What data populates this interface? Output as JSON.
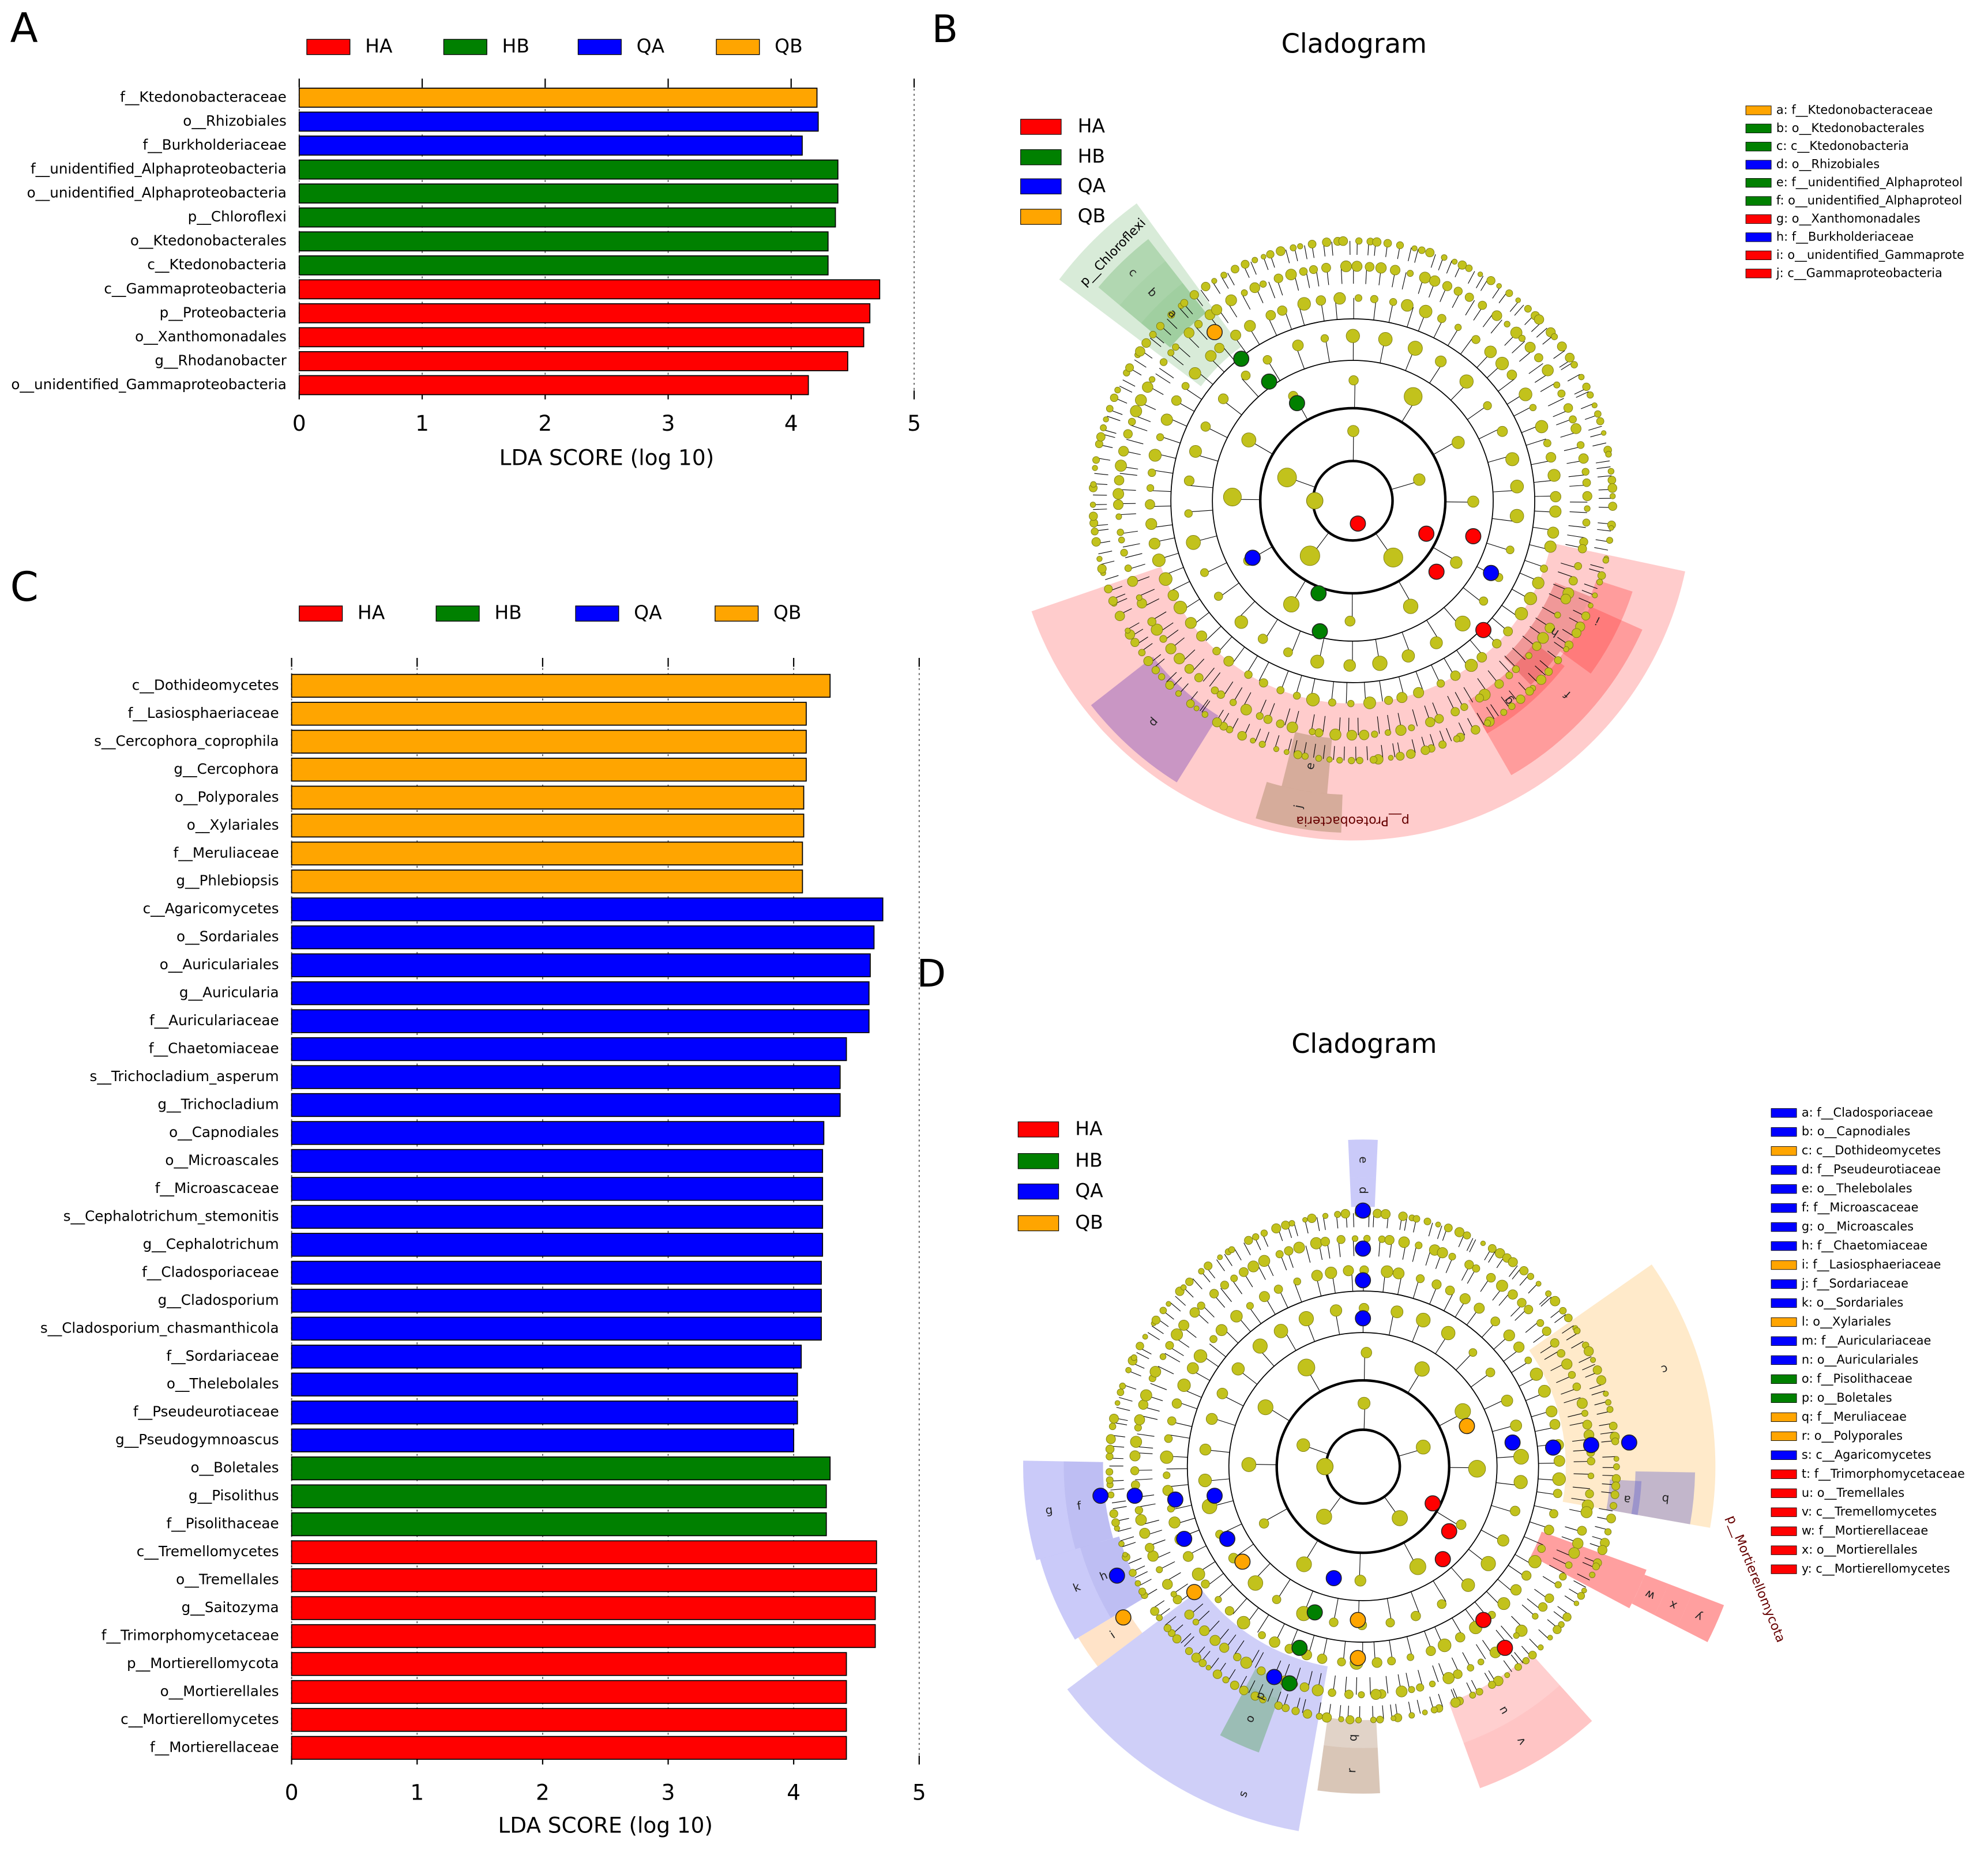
{
  "chart_data": [
    {
      "type": "barh",
      "panel": "A",
      "xlabel": "LDA SCORE (log 10)",
      "categories": [
        "f__Ktedonobacteraceae",
        "o__Rhizobiales",
        "f__Burkholderiaceae",
        "f__unidentified_Alphaproteobacteria",
        "o__unidentified_Alphaproteobacteria",
        "p__Chloroflexi",
        "o__Ktedonobacterales",
        "c__Ktedonobacteria",
        "c__Gammaproteobacteria",
        "p__Proteobacteria",
        "o__Xanthomonadales",
        "g__Rhodanobacter",
        "o__unidentified_Gammaproteobacteria"
      ],
      "series": [
        {
          "name": "HA",
          "color": "#ff0000",
          "values": [
            null,
            null,
            null,
            null,
            null,
            null,
            null,
            null,
            4.72,
            4.64,
            4.59,
            4.46,
            4.14
          ]
        },
        {
          "name": "HB",
          "color": "#008000",
          "values": [
            null,
            null,
            null,
            4.38,
            4.38,
            4.36,
            4.3,
            4.3,
            null,
            null,
            null,
            null,
            null
          ]
        },
        {
          "name": "QA",
          "color": "#0000ff",
          "values": [
            null,
            4.22,
            4.09,
            null,
            null,
            null,
            null,
            null,
            null,
            null,
            null,
            null,
            null
          ]
        },
        {
          "name": "QB",
          "color": "#ffa500",
          "values": [
            4.21,
            null,
            null,
            null,
            null,
            null,
            null,
            null,
            null,
            null,
            null,
            null,
            null
          ]
        }
      ],
      "xlim": [
        0,
        5
      ],
      "xticks": [
        0,
        1,
        2,
        3,
        4,
        5
      ],
      "grid": true
    },
    {
      "type": "barh",
      "panel": "C",
      "xlabel": "LDA SCORE (log 10)",
      "categories": [
        "c__Dothideomycetes",
        "f__Lasiosphaeriaceae",
        "s__Cercophora_coprophila",
        "g__Cercophora",
        "o__Polyporales",
        "o__Xylariales",
        "f__Meruliaceae",
        "g__Phlebiopsis",
        "c__Agaricomycetes",
        "o__Sordariales",
        "o__Auriculariales",
        "g__Auricularia",
        "f__Auriculariaceae",
        "f__Chaetomiaceae",
        "s__Trichocladium_asperum",
        "g__Trichocladium",
        "o__Capnodiales",
        "o__Microascales",
        "f__Microascaceae",
        "s__Cephalotrichum_stemonitis",
        "g__Cephalotrichum",
        "f__Cladosporiaceae",
        "g__Cladosporium",
        "s__Cladosporium_chasmanthicola",
        "f__Sordariaceae",
        "o__Thelebolales",
        "f__Pseudeurotiaceae",
        "g__Pseudogymnoascus",
        "o__Boletales",
        "g__Pisolithus",
        "f__Pisolithaceae",
        "c__Tremellomycetes",
        "o__Tremellales",
        "g__Saitozyma",
        "f__Trimorphomycetaceae",
        "p__Mortierellomycota",
        "o__Mortierellales",
        "c__Mortierellomycetes",
        "f__Mortierellaceae"
      ],
      "series": [
        {
          "name": "HA",
          "color": "#ff0000",
          "values": [
            null,
            null,
            null,
            null,
            null,
            null,
            null,
            null,
            null,
            null,
            null,
            null,
            null,
            null,
            null,
            null,
            null,
            null,
            null,
            null,
            null,
            null,
            null,
            null,
            null,
            null,
            null,
            null,
            null,
            null,
            null,
            4.66,
            4.66,
            4.65,
            4.65,
            4.42,
            4.42,
            4.42,
            4.42
          ]
        },
        {
          "name": "HB",
          "color": "#008000",
          "values": [
            null,
            null,
            null,
            null,
            null,
            null,
            null,
            null,
            null,
            null,
            null,
            null,
            null,
            null,
            null,
            null,
            null,
            null,
            null,
            null,
            null,
            null,
            null,
            null,
            null,
            null,
            null,
            null,
            4.29,
            4.26,
            4.26,
            null,
            null,
            null,
            null,
            null,
            null,
            null,
            null
          ]
        },
        {
          "name": "QA",
          "color": "#0000ff",
          "values": [
            null,
            null,
            null,
            null,
            null,
            null,
            null,
            null,
            4.71,
            4.64,
            4.61,
            4.6,
            4.6,
            4.42,
            4.37,
            4.37,
            4.24,
            4.23,
            4.23,
            4.23,
            4.23,
            4.22,
            4.22,
            4.22,
            4.06,
            4.03,
            4.03,
            4.0,
            null,
            null,
            null,
            null,
            null,
            null,
            null,
            null,
            null,
            null,
            null
          ]
        },
        {
          "name": "QB",
          "color": "#ffa500",
          "values": [
            4.29,
            4.1,
            4.1,
            4.1,
            4.08,
            4.08,
            4.07,
            4.07,
            null,
            null,
            null,
            null,
            null,
            null,
            null,
            null,
            null,
            null,
            null,
            null,
            null,
            null,
            null,
            null,
            null,
            null,
            null,
            null,
            null,
            null,
            null,
            null,
            null,
            null,
            null,
            null,
            null,
            null,
            null
          ]
        }
      ],
      "xlim": [
        0,
        5
      ],
      "xticks": [
        0,
        1,
        2,
        3,
        4,
        5
      ],
      "grid": true
    }
  ],
  "cladograms": [
    {
      "panel": "B",
      "title": "Cladogram",
      "legend": [
        {
          "name": "HA",
          "color": "#ff0000"
        },
        {
          "name": "HB",
          "color": "#008000"
        },
        {
          "name": "QA",
          "color": "#0000ff"
        },
        {
          "name": "QB",
          "color": "#ffa500"
        }
      ],
      "taxa": [
        {
          "key": "a: f__Ktedonobacteraceae",
          "color": "#ffa500"
        },
        {
          "key": "b: o__Ktedonobacterales",
          "color": "#008000"
        },
        {
          "key": "c: c__Ktedonobacteria",
          "color": "#008000"
        },
        {
          "key": "d: o__Rhizobiales",
          "color": "#0000ff"
        },
        {
          "key": "e: f__unidentified_Alphaproteol",
          "color": "#008000"
        },
        {
          "key": "f: o__unidentified_Alphaproteol",
          "color": "#008000"
        },
        {
          "key": "g: o__Xanthomonadales",
          "color": "#ff0000"
        },
        {
          "key": "h: f__Burkholderiaceae",
          "color": "#0000ff"
        },
        {
          "key": "i: o__unidentified_Gammaprote",
          "color": "#ff0000"
        },
        {
          "key": "j: c__Gammaproteobacteria",
          "color": "#ff0000"
        }
      ],
      "sector_letters": [
        "a",
        "b",
        "c",
        "d",
        "e",
        "j",
        "f",
        "g",
        "h",
        "i"
      ],
      "clade_labels": [
        "p__Chloroflexi",
        "p__Proteobacteria"
      ]
    },
    {
      "panel": "D",
      "title": "Cladogram",
      "legend": [
        {
          "name": "HA",
          "color": "#ff0000"
        },
        {
          "name": "HB",
          "color": "#008000"
        },
        {
          "name": "QA",
          "color": "#0000ff"
        },
        {
          "name": "QB",
          "color": "#ffa500"
        }
      ],
      "taxa": [
        {
          "key": "a: f__Cladosporiaceae",
          "color": "#0000ff"
        },
        {
          "key": "b: o__Capnodiales",
          "color": "#0000ff"
        },
        {
          "key": "c: c__Dothideomycetes",
          "color": "#ffa500"
        },
        {
          "key": "d: f__Pseudeurotiaceae",
          "color": "#0000ff"
        },
        {
          "key": "e: o__Thelebolales",
          "color": "#0000ff"
        },
        {
          "key": "f: f__Microascaceae",
          "color": "#0000ff"
        },
        {
          "key": "g: o__Microascales",
          "color": "#0000ff"
        },
        {
          "key": "h: f__Chaetomiaceae",
          "color": "#0000ff"
        },
        {
          "key": "i: f__Lasiosphaeriaceae",
          "color": "#ffa500"
        },
        {
          "key": "j: f__Sordariaceae",
          "color": "#0000ff"
        },
        {
          "key": "k: o__Sordariales",
          "color": "#0000ff"
        },
        {
          "key": "l: o__Xylariales",
          "color": "#ffa500"
        },
        {
          "key": "m: f__Auriculariaceae",
          "color": "#0000ff"
        },
        {
          "key": "n: o__Auriculariales",
          "color": "#0000ff"
        },
        {
          "key": "o: f__Pisolithaceae",
          "color": "#008000"
        },
        {
          "key": "p: o__Boletales",
          "color": "#008000"
        },
        {
          "key": "q: f__Meruliaceae",
          "color": "#ffa500"
        },
        {
          "key": "r: o__Polyporales",
          "color": "#ffa500"
        },
        {
          "key": "s: c__Agaricomycetes",
          "color": "#0000ff"
        },
        {
          "key": "t: f__Trimorphomycetaceae",
          "color": "#ff0000"
        },
        {
          "key": "u: o__Tremellales",
          "color": "#ff0000"
        },
        {
          "key": "v: c__Tremellomycetes",
          "color": "#ff0000"
        },
        {
          "key": "w: f__Mortierellaceae",
          "color": "#ff0000"
        },
        {
          "key": "x: o__Mortierellales",
          "color": "#ff0000"
        },
        {
          "key": "y: c__Mortierellomycetes",
          "color": "#ff0000"
        }
      ],
      "sector_letters": [
        "c",
        "b",
        "a",
        "e",
        "d",
        "g",
        "f",
        "k",
        "h",
        "i",
        "s",
        "o",
        "p",
        "r",
        "q",
        "v",
        "u",
        "y",
        "x",
        "w"
      ],
      "clade_labels": [
        "p__Mortierellomycota"
      ]
    }
  ]
}
